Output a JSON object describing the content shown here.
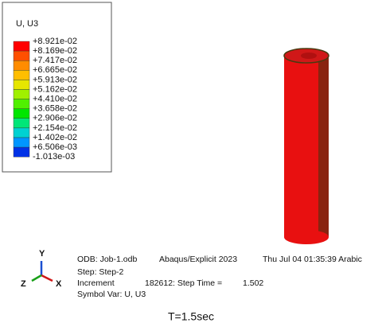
{
  "legend": {
    "title": "U, U3",
    "labels": [
      "+8.921e-02",
      "+8.169e-02",
      "+7.417e-02",
      "+6.665e-02",
      "+5.913e-02",
      "+5.162e-02",
      "+4.410e-02",
      "+3.658e-02",
      "+2.906e-02",
      "+2.154e-02",
      "+1.402e-02",
      "+6.506e-03",
      "-1.013e-03"
    ],
    "colors": [
      "#ff0000",
      "#ff5000",
      "#ff8c00",
      "#ffbe00",
      "#e6e600",
      "#a0f000",
      "#50f000",
      "#00e600",
      "#00e678",
      "#00d2d2",
      "#0096ff",
      "#0032e6"
    ]
  },
  "triad": {
    "x": "X",
    "y": "Y",
    "z": "Z"
  },
  "info": {
    "odb": "ODB: Job-1.odb",
    "program": "Abaqus/Explicit 2023",
    "date": "Thu Jul 04 01:35:39 Arabic",
    "step": "Step: Step-2",
    "increment_label": "Increment",
    "increment": "182612: Step Time =",
    "step_time": "1.502",
    "symbol": "Symbol Var: U, U3"
  },
  "caption": "T=1.5sec"
}
